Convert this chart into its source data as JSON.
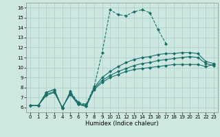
{
  "xlabel": "Humidex (Indice chaleur)",
  "background_color": "#cce8e0",
  "grid_color": "#aacccc",
  "line_color": "#1a6e6a",
  "xlim": [
    -0.5,
    23.5
  ],
  "ylim": [
    5.5,
    16.5
  ],
  "xticks": [
    0,
    1,
    2,
    3,
    4,
    5,
    6,
    7,
    8,
    9,
    10,
    11,
    12,
    13,
    14,
    15,
    16,
    17,
    18,
    19,
    20,
    21,
    22,
    23
  ],
  "yticks": [
    6,
    7,
    8,
    9,
    10,
    11,
    12,
    13,
    14,
    15,
    16
  ],
  "series": [
    {
      "x": [
        0,
        1,
        2,
        3,
        4,
        5,
        6,
        7,
        8,
        9,
        10,
        11,
        12,
        13,
        14,
        15,
        16,
        17
      ],
      "y": [
        6.2,
        6.2,
        7.5,
        7.8,
        5.9,
        7.6,
        6.5,
        6.3,
        8.1,
        11.5,
        15.8,
        15.3,
        15.2,
        15.6,
        15.8,
        15.5,
        13.8,
        12.4
      ],
      "linestyle": "--",
      "linewidth": 0.8,
      "marker": "D",
      "markersize": 2.0
    },
    {
      "x": [
        0,
        1,
        2,
        3,
        4,
        5,
        6,
        7,
        8,
        9,
        10,
        11,
        12,
        13,
        14,
        15,
        16,
        17,
        18,
        19,
        20,
        21,
        22,
        23
      ],
      "y": [
        6.2,
        6.2,
        7.5,
        7.8,
        5.9,
        7.5,
        6.4,
        6.2,
        8.0,
        9.0,
        9.6,
        10.1,
        10.5,
        10.8,
        11.0,
        11.1,
        11.3,
        11.4,
        11.4,
        11.5,
        11.5,
        11.4,
        10.6,
        10.4
      ],
      "linestyle": "-",
      "linewidth": 0.8,
      "marker": "D",
      "markersize": 2.0
    },
    {
      "x": [
        0,
        1,
        2,
        3,
        4,
        5,
        6,
        7,
        8,
        9,
        10,
        11,
        12,
        13,
        14,
        15,
        16,
        17,
        18,
        19,
        20,
        21,
        22,
        23
      ],
      "y": [
        6.2,
        6.2,
        7.3,
        7.6,
        6.0,
        7.4,
        6.3,
        6.1,
        7.9,
        8.7,
        9.2,
        9.6,
        9.9,
        10.2,
        10.4,
        10.5,
        10.7,
        10.8,
        10.9,
        11.0,
        11.1,
        11.0,
        10.4,
        10.2
      ],
      "linestyle": "-",
      "linewidth": 0.8,
      "marker": "D",
      "markersize": 2.0
    },
    {
      "x": [
        0,
        1,
        2,
        3,
        4,
        5,
        6,
        7,
        8,
        9,
        10,
        11,
        12,
        13,
        14,
        15,
        16,
        17,
        18,
        19,
        20,
        21,
        22,
        23
      ],
      "y": [
        6.2,
        6.2,
        7.2,
        7.5,
        6.0,
        7.3,
        6.3,
        6.1,
        7.8,
        8.5,
        9.0,
        9.3,
        9.6,
        9.8,
        9.9,
        10.0,
        10.1,
        10.2,
        10.3,
        10.3,
        10.3,
        10.3,
        10.1,
        10.3
      ],
      "linestyle": "-",
      "linewidth": 0.8,
      "marker": "D",
      "markersize": 2.0
    }
  ]
}
